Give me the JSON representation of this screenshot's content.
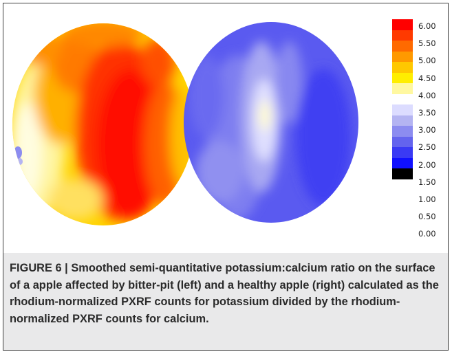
{
  "figure": {
    "label": "FIGURE 6",
    "separator": "|",
    "caption_text": "Smoothed semi-quantitative potassium:calcium ratio on the surface of a apple affected by bitter-pit (left) and a healthy apple (right) calculated as the rhodium-normalized PXRF counts for potassium divided by the rhodium-normalized PXRF counts for calcium."
  },
  "colorscale": {
    "tick_labels": [
      "6.00",
      "5.50",
      "5.00",
      "4.50",
      "4.00",
      "3.50",
      "3.00",
      "2.50",
      "2.00",
      "1.50",
      "1.00",
      "0.50",
      "0.00"
    ],
    "colors": [
      "#ff0000",
      "#ff3a00",
      "#ff6a00",
      "#ff9900",
      "#ffc800",
      "#ffee00",
      "#fff8a0",
      "#ffffff",
      "#dcdcff",
      "#b4b4f2",
      "#8c8cf0",
      "#6464ee",
      "#3a3af4",
      "#1010ff",
      "#000000"
    ]
  },
  "panels": [
    {
      "side": "left",
      "condition": "bitter-pit"
    },
    {
      "side": "right",
      "condition": "healthy"
    }
  ]
}
